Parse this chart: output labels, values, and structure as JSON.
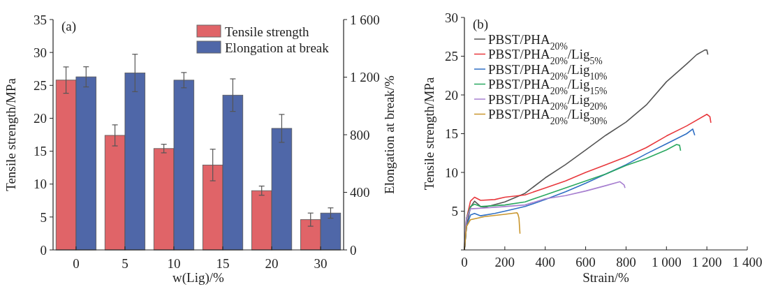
{
  "chart_data": [
    {
      "type": "bar",
      "annotations": [
        "(a)"
      ],
      "xlabel": "w(Lig)/%",
      "ylabel": "Tensile strength/MPa",
      "y2label": "Elongation at break/%",
      "categories": [
        "0",
        "5",
        "10",
        "15",
        "20",
        "30"
      ],
      "series": [
        {
          "name": "Tensile strength",
          "color": "#e06468",
          "values": [
            25.8,
            17.4,
            15.4,
            12.9,
            9.0,
            4.6
          ],
          "errors": [
            2.0,
            1.6,
            0.65,
            2.4,
            0.7,
            1.0
          ]
        },
        {
          "name": "Elongation at break",
          "color": "#4f67a8",
          "axis": "y2",
          "values": [
            1202,
            1229,
            1179,
            1075,
            844,
            256
          ],
          "errors": [
            70,
            130,
            53,
            113,
            97,
            36
          ]
        }
      ],
      "ylim": [
        0,
        35
      ],
      "yticks": [
        0,
        5,
        10,
        15,
        20,
        25,
        30,
        35
      ],
      "y2lim": [
        0,
        1600
      ],
      "y2ticks": [
        0,
        400,
        800,
        {
          "value": 1200,
          "label": "1 200"
        },
        {
          "value": 1600,
          "label": "1 600"
        }
      ],
      "legend": "top right",
      "grid": false
    },
    {
      "type": "line",
      "annotations": [
        "(b)"
      ],
      "xlabel": "Strain/%",
      "ylabel": "Tensile strength/MPa",
      "xlim": [
        0,
        1400
      ],
      "xticks": [
        0,
        200,
        400,
        600,
        800,
        {
          "value": 1000,
          "label": "1 000"
        },
        {
          "value": 1200,
          "label": "1 200"
        },
        {
          "value": 1400,
          "label": "1 400"
        }
      ],
      "ylim": [
        0,
        30
      ],
      "yticks": [
        {
          "value": 0,
          "label": null
        },
        5,
        10,
        15,
        20,
        25,
        30
      ],
      "legend": "top left",
      "grid": false,
      "marker": "none",
      "line_style": "solid",
      "series": [
        {
          "name": "PBST/PHA$_{20%}$",
          "color": "#555555",
          "x": [
            0,
            10,
            30,
            50,
            80,
            100,
            200,
            300,
            400,
            500,
            600,
            700,
            800,
            900,
            1000,
            1100,
            1150,
            1190,
            1200,
            1205
          ],
          "values": [
            0,
            3,
            5.5,
            6.3,
            5.6,
            5.5,
            6.2,
            7.3,
            9.3,
            11,
            12.9,
            14.8,
            16.5,
            18.7,
            21.7,
            24,
            25.2,
            25.8,
            25.8,
            25.2
          ]
        },
        {
          "name": "PBST/PHA$_{20%}$/Lig$_{5%}$",
          "color": "#e8383d",
          "x": [
            0,
            10,
            30,
            50,
            80,
            150,
            200,
            300,
            400,
            500,
            600,
            700,
            800,
            900,
            1000,
            1100,
            1200,
            1215,
            1220
          ],
          "values": [
            0,
            4,
            6.3,
            6.8,
            6.4,
            6.5,
            6.8,
            7.1,
            8,
            8.9,
            10,
            11,
            12,
            13.2,
            14.7,
            16,
            17.5,
            17.2,
            16.4
          ]
        },
        {
          "name": "PBST/PHA$_{20%}$/Lig$_{10%}$",
          "color": "#2f6fc4",
          "x": [
            0,
            10,
            30,
            50,
            80,
            150,
            200,
            300,
            400,
            500,
            600,
            700,
            800,
            900,
            1000,
            1100,
            1130,
            1140
          ],
          "values": [
            0,
            3,
            4.5,
            4.7,
            4.4,
            4.7,
            5,
            5.6,
            6.5,
            7.5,
            8.6,
            9.8,
            11,
            12.4,
            13.7,
            15,
            15.6,
            14.8
          ]
        },
        {
          "name": "PBST/PHA$_{20%}$/Lig$_{15%}$",
          "color": "#2aa860",
          "x": [
            0,
            10,
            30,
            50,
            80,
            200,
            300,
            400,
            500,
            600,
            700,
            800,
            900,
            1000,
            1050,
            1065,
            1070
          ],
          "values": [
            0,
            4,
            5.6,
            5.9,
            5.6,
            5.8,
            6.2,
            7.1,
            8,
            8.9,
            9.8,
            10.9,
            11.8,
            12.9,
            13.6,
            13.5,
            12.8
          ]
        },
        {
          "name": "PBST/PHA$_{20%}$/Lig$_{20%}$",
          "color": "#a77fd0",
          "x": [
            0,
            10,
            30,
            100,
            200,
            300,
            400,
            500,
            600,
            700,
            770,
            790,
            795
          ],
          "values": [
            0,
            4,
            5.3,
            5.4,
            5.6,
            5.8,
            6.6,
            7,
            7.6,
            8.3,
            8.8,
            8.4,
            8.0
          ]
        },
        {
          "name": "PBST/PHA$_{20%}$/Lig$_{30%}$",
          "color": "#c9962e",
          "x": [
            0,
            10,
            30,
            100,
            200,
            260,
            265,
            270,
            275
          ],
          "values": [
            0,
            3,
            3.9,
            4.3,
            4.6,
            4.8,
            4.6,
            4.1,
            2.1
          ]
        }
      ]
    }
  ]
}
